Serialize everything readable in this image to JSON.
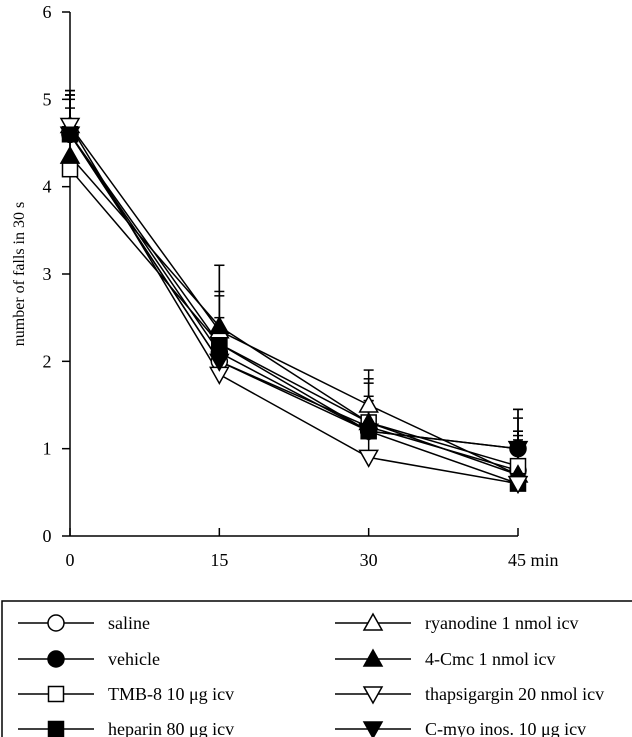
{
  "chart_data": {
    "type": "line",
    "x": [
      0,
      15,
      30,
      45
    ],
    "x_tick_labels": [
      "0",
      "15",
      "30",
      "45 min"
    ],
    "y_ticks": [
      0,
      1,
      2,
      3,
      4,
      5,
      6
    ],
    "ylim": [
      0,
      6
    ],
    "xlim": [
      0,
      45
    ],
    "ylabel": "number of falls in 30 s",
    "xlabel": "",
    "grid": false,
    "legend_position": "bottom",
    "series": [
      {
        "name": "saline",
        "marker": "circle-open",
        "values": [
          4.6,
          2.0,
          1.25,
          0.75
        ],
        "err": [
          0.45,
          0.35,
          0.3,
          0.4
        ]
      },
      {
        "name": "vehicle",
        "marker": "circle-filled",
        "values": [
          4.6,
          2.1,
          1.2,
          1.0
        ],
        "err": [
          0.45,
          0.4,
          0.3,
          0.45
        ]
      },
      {
        "name": "TMB-8 10 μg icv",
        "marker": "square-open",
        "values": [
          4.2,
          2.2,
          1.3,
          0.8
        ],
        "err": [
          0.5,
          0.55,
          0.45,
          0.55
        ]
      },
      {
        "name": "heparin 80 μg icv",
        "marker": "square-filled",
        "values": [
          4.6,
          2.2,
          1.2,
          0.6
        ],
        "err": [
          0.4,
          0.6,
          0.4,
          0.6
        ]
      },
      {
        "name": "ryanodine 1 nmol icv",
        "marker": "triangle-up-open",
        "values": [
          4.7,
          2.35,
          1.5,
          0.7
        ],
        "err": [
          0.4,
          0.75,
          0.4,
          0.5
        ]
      },
      {
        "name": "4-Cmc 1 nmol icv",
        "marker": "triangle-up-filled",
        "values": [
          4.35,
          2.4,
          1.3,
          0.7
        ],
        "err": [
          0.55,
          0.7,
          0.5,
          0.5
        ]
      },
      {
        "name": "thapsigargin 20 nmol icv",
        "marker": "triangle-down-open",
        "values": [
          4.7,
          1.85,
          0.9,
          0.6
        ],
        "err": [
          0.4,
          0.35,
          0.35,
          0.5
        ]
      },
      {
        "name": "C-myo inos. 10 μg icv",
        "marker": "triangle-down-filled",
        "values": [
          4.6,
          2.0,
          1.2,
          1.0
        ],
        "err": [
          0.45,
          0.4,
          0.35,
          0.45
        ]
      }
    ]
  }
}
